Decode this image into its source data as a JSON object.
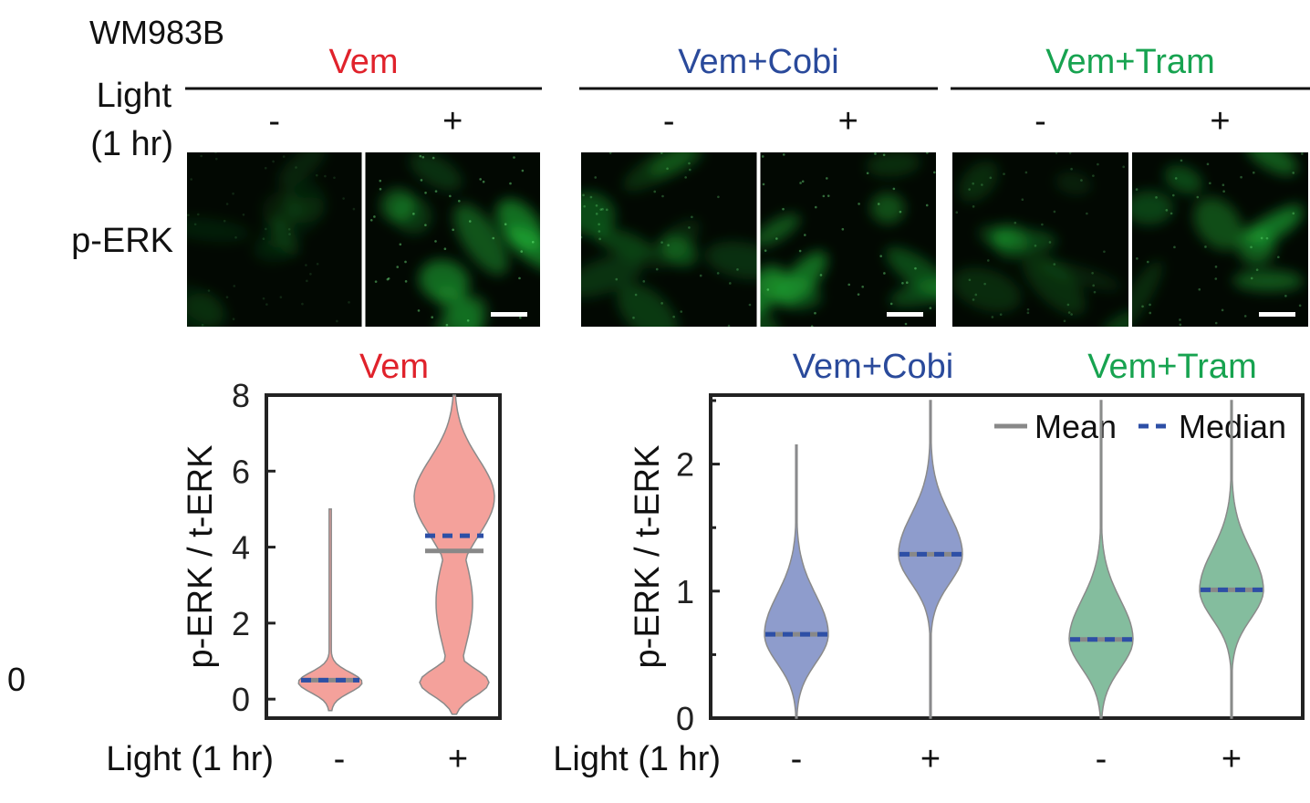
{
  "figure": {
    "cell_line": "WM983B",
    "light_label_line1": "Light",
    "light_label_line2": "(1 hr)",
    "image_row_label": "p-ERK",
    "stray_label": "0",
    "colors": {
      "vem": "#e0222b",
      "cobi": "#2a4a9b",
      "tram": "#17a350",
      "vem_fill": "#f4a19b",
      "cobi_fill": "#8e9ccc",
      "tram_fill": "#84bd9e",
      "mean_line": "#888888",
      "median_line": "#2d4fa6",
      "micrograph_bg": "#020802",
      "cell_green": "#22c23c"
    },
    "image_panels": [
      {
        "group": "Vem",
        "color_key": "vem",
        "conditions": [
          {
            "label": "-",
            "brightness": 0.25,
            "icon": "dim-cells-micrograph"
          },
          {
            "label": "+",
            "brightness": 0.85,
            "icon": "bright-cells-micrograph"
          }
        ]
      },
      {
        "group": "Vem+Cobi",
        "color_key": "cobi",
        "conditions": [
          {
            "label": "-",
            "brightness": 0.55,
            "icon": "cells-micrograph"
          },
          {
            "label": "+",
            "brightness": 0.8,
            "icon": "bright-cells-micrograph"
          }
        ]
      },
      {
        "group": "Vem+Tram",
        "color_key": "tram",
        "conditions": [
          {
            "label": "-",
            "brightness": 0.45,
            "icon": "cells-micrograph"
          },
          {
            "label": "+",
            "brightness": 0.6,
            "icon": "cells-micrograph"
          }
        ]
      }
    ]
  },
  "chart_data": [
    {
      "type": "violin",
      "title": "Vem",
      "ylabel": "p-ERK / t-ERK",
      "ylim": [
        -0.5,
        8.0
      ],
      "yticks": [
        0,
        2,
        4,
        6,
        8
      ],
      "xlabel": "Light (1 hr)",
      "categories": [
        "-",
        "+"
      ],
      "series": [
        {
          "group": "Vem",
          "light": "-",
          "mean": 0.5,
          "median": 0.5,
          "min": -0.3,
          "max": 5.0
        },
        {
          "group": "Vem",
          "light": "+",
          "mean": 3.9,
          "median": 4.3,
          "min": -0.4,
          "max": 8.0
        }
      ]
    },
    {
      "type": "violin",
      "title_left": "Vem+Cobi",
      "title_right": "Vem+Tram",
      "ylabel": "p-ERK / t-ERK",
      "ylim": [
        0,
        2.5
      ],
      "yticks": [
        0,
        1,
        2
      ],
      "xlabel": "Light (1 hr)",
      "categories": [
        "-",
        "+",
        "-",
        "+"
      ],
      "legend": {
        "position": "top-right",
        "mean_label": "Mean",
        "median_label": "Median"
      },
      "series": [
        {
          "group": "Vem+Cobi",
          "light": "-",
          "mean": 0.66,
          "median": 0.66,
          "min": 0.0,
          "max": 2.15
        },
        {
          "group": "Vem+Cobi",
          "light": "+",
          "mean": 1.29,
          "median": 1.29,
          "min": 0.0,
          "max": 2.5
        },
        {
          "group": "Vem+Tram",
          "light": "-",
          "mean": 0.62,
          "median": 0.62,
          "min": 0.0,
          "max": 2.5
        },
        {
          "group": "Vem+Tram",
          "light": "+",
          "mean": 1.01,
          "median": 1.01,
          "min": 0.0,
          "max": 2.5
        }
      ]
    }
  ]
}
